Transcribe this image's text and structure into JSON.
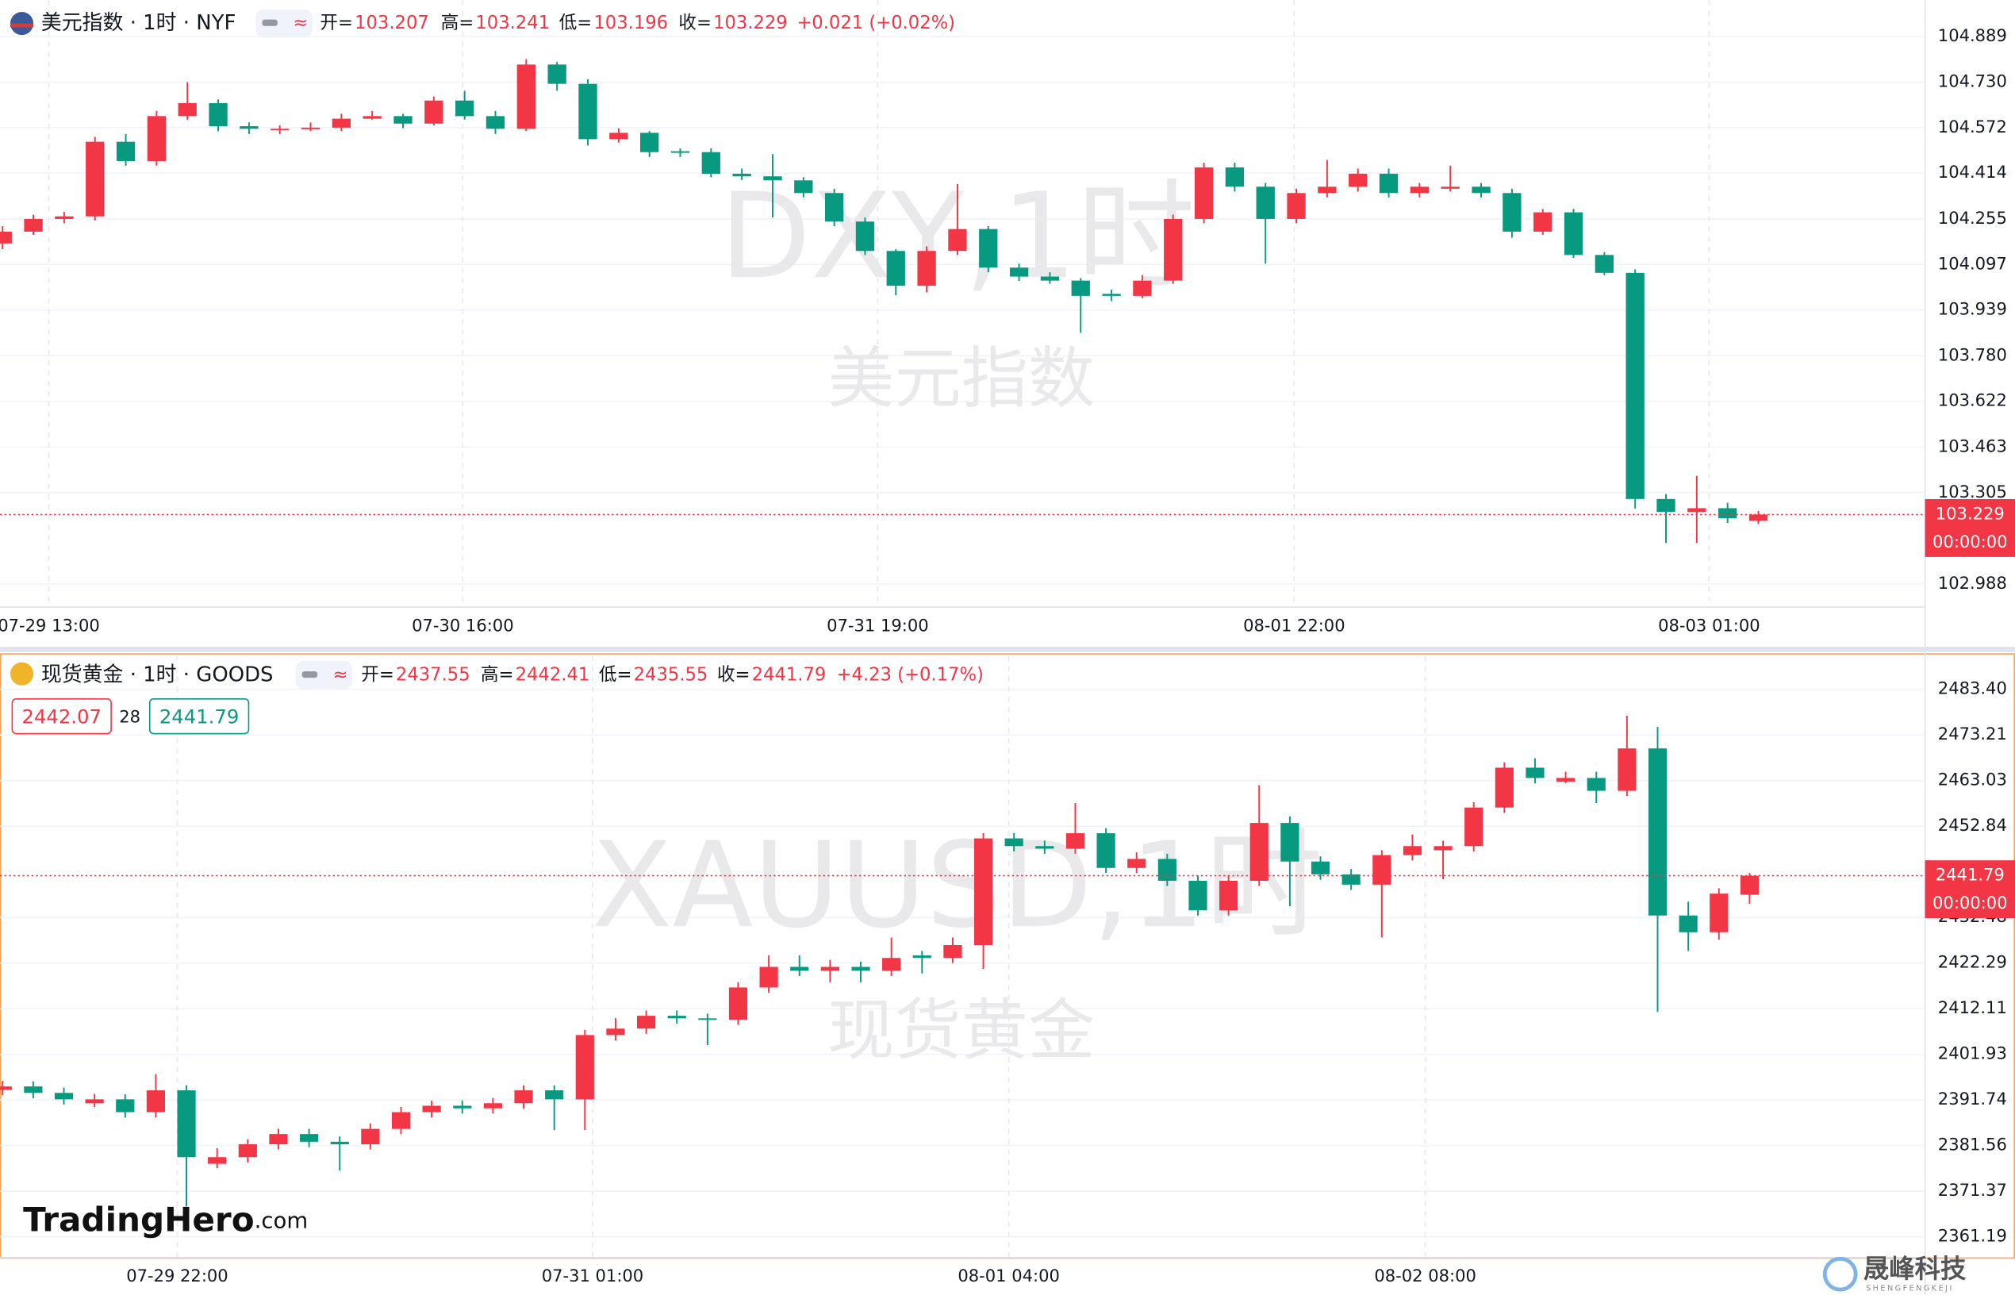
{
  "chart_data": [
    {
      "type": "candlestick",
      "title": "美元指数 · 1时 · NYF",
      "ohlc_labels": [
        "开=",
        "高=",
        "低=",
        "收="
      ],
      "change": "+0.021 (+0.02%)",
      "watermark": [
        "DXY,1时",
        "美元指数"
      ],
      "price_time": "00:00:00",
      "up_color": "#f23645",
      "down_color": "#089981",
      "ylim": [
        102.908,
        105.014
      ],
      "yticks": [
        104.889,
        {
          "value": 104.73,
          "label": "104.730"
        },
        104.572,
        104.414,
        104.255,
        104.097,
        103.939,
        {
          "value": 103.78,
          "label": "103.780"
        },
        103.622,
        103.463,
        103.305,
        102.988
      ],
      "xticks": [
        {
          "value": 1.5,
          "label": "07-29 13:00"
        },
        {
          "value": 14.94,
          "label": "07-30 16:00"
        },
        {
          "value": 28.41,
          "label": "07-31 19:00"
        },
        {
          "value": 41.93,
          "label": "08-01 22:00"
        },
        {
          "value": 55.4,
          "label": "08-03 01:00"
        }
      ],
      "candles": [
        [
          104.17,
          104.23,
          104.15,
          104.211
        ],
        [
          104.211,
          104.27,
          104.2,
          104.255
        ],
        [
          104.255,
          104.28,
          104.24,
          104.264
        ],
        [
          104.264,
          104.54,
          104.25,
          104.523
        ],
        [
          104.523,
          104.55,
          104.44,
          104.456
        ],
        [
          104.456,
          104.63,
          104.44,
          104.612
        ],
        [
          104.612,
          104.73,
          104.6,
          104.657
        ],
        [
          104.657,
          104.67,
          104.56,
          104.577
        ],
        [
          104.577,
          104.59,
          104.55,
          104.568
        ],
        [
          104.565,
          104.58,
          104.55,
          104.568
        ],
        [
          104.568,
          104.59,
          104.56,
          104.572
        ],
        [
          104.572,
          104.62,
          104.56,
          104.603
        ],
        [
          104.603,
          104.63,
          104.6,
          104.612
        ],
        [
          104.612,
          104.62,
          104.57,
          104.586
        ],
        [
          104.586,
          104.68,
          104.58,
          104.666
        ],
        [
          104.666,
          104.7,
          104.6,
          104.612
        ],
        [
          104.612,
          104.63,
          104.55,
          104.568
        ],
        [
          104.568,
          104.81,
          104.56,
          104.791
        ],
        [
          104.791,
          104.8,
          104.7,
          104.724
        ],
        [
          104.724,
          104.74,
          104.51,
          104.532
        ],
        [
          104.532,
          104.57,
          104.52,
          104.554
        ],
        [
          104.554,
          104.56,
          104.47,
          104.487
        ],
        [
          104.49,
          104.5,
          104.47,
          104.487
        ],
        [
          104.487,
          104.5,
          104.4,
          104.412
        ],
        [
          104.412,
          104.43,
          104.39,
          104.403
        ],
        [
          104.403,
          104.48,
          104.26,
          104.389
        ],
        [
          104.389,
          104.4,
          104.33,
          104.345
        ],
        [
          104.345,
          104.36,
          104.23,
          104.246
        ],
        [
          104.246,
          104.26,
          104.13,
          104.144
        ],
        [
          104.144,
          104.15,
          103.99,
          104.023
        ],
        [
          104.023,
          104.16,
          104.0,
          104.144
        ],
        [
          104.144,
          104.376,
          104.13,
          104.22
        ],
        [
          104.22,
          104.23,
          104.07,
          104.086
        ],
        [
          104.086,
          104.1,
          104.04,
          104.055
        ],
        [
          104.055,
          104.07,
          104.03,
          104.041
        ],
        [
          104.041,
          104.05,
          103.86,
          103.988
        ],
        [
          103.995,
          104.01,
          103.97,
          103.988
        ],
        [
          103.988,
          104.06,
          103.98,
          104.041
        ],
        [
          104.041,
          104.27,
          104.03,
          104.255
        ],
        [
          104.255,
          104.45,
          104.24,
          104.434
        ],
        [
          104.434,
          104.45,
          104.35,
          104.367
        ],
        [
          104.367,
          104.38,
          104.1,
          104.255
        ],
        [
          104.255,
          104.36,
          104.24,
          104.345
        ],
        [
          104.345,
          104.46,
          104.33,
          104.367
        ],
        [
          104.367,
          104.43,
          104.35,
          104.412
        ],
        [
          104.412,
          104.43,
          104.33,
          104.345
        ],
        [
          104.345,
          104.38,
          104.33,
          104.367
        ],
        [
          104.36,
          104.44,
          104.35,
          104.367
        ],
        [
          104.367,
          104.38,
          104.33,
          104.345
        ],
        [
          104.345,
          104.36,
          104.19,
          104.211
        ],
        [
          104.211,
          104.29,
          104.2,
          104.278
        ],
        [
          104.278,
          104.29,
          104.12,
          104.13
        ],
        [
          104.13,
          104.14,
          104.06,
          104.068
        ],
        [
          104.068,
          104.08,
          103.25,
          103.283
        ],
        [
          103.283,
          103.3,
          103.13,
          103.238
        ],
        [
          103.238,
          103.363,
          103.13,
          103.251
        ],
        [
          103.251,
          103.27,
          103.2,
          103.216
        ],
        [
          103.207,
          103.241,
          103.196,
          103.229
        ]
      ]
    },
    {
      "type": "candlestick",
      "title": "现货黄金 · 1时 · GOODS",
      "ohlc_labels": [
        "开=",
        "高=",
        "低=",
        "收="
      ],
      "change": "+4.23 (+0.17%)",
      "watermark": [
        "XAUUSD,1时",
        "现货黄金"
      ],
      "price_time": "00:00:00",
      "up_color": "#f23645",
      "down_color": "#089981",
      "bid": 2442.07,
      "spread": 28,
      "ask": 2441.79,
      "ylim": [
        2356.6,
        2490.86
      ],
      "yticks": [
        {
          "value": 2483.4,
          "label": "2483.40"
        },
        2473.21,
        2463.03,
        2452.84,
        2432.48,
        2422.29,
        2412.11,
        2401.93,
        2391.74,
        2381.56,
        2371.37,
        2361.19
      ],
      "xticks": [
        {
          "value": 5.7,
          "label": "07-29 22:00"
        },
        {
          "value": 19.25,
          "label": "07-31 01:00"
        },
        {
          "value": 32.83,
          "label": "08-01 04:00"
        },
        {
          "value": 46.42,
          "label": "08-02 08:00"
        }
      ],
      "candles": [
        [
          2394.0,
          2396.0,
          2392.8,
          2394.76
        ],
        [
          2394.76,
          2395.9,
          2392.1,
          2393.32
        ],
        [
          2393.32,
          2394.5,
          2390.7,
          2391.89
        ],
        [
          2391.0,
          2393.1,
          2390.2,
          2391.89
        ],
        [
          2391.89,
          2393.0,
          2387.8,
          2389.02
        ],
        [
          2389.02,
          2397.5,
          2387.8,
          2393.89
        ],
        [
          2393.89,
          2395.0,
          2368.0,
          2378.98
        ],
        [
          2377.5,
          2381.0,
          2376.5,
          2378.98
        ],
        [
          2378.98,
          2383.0,
          2377.8,
          2381.85
        ],
        [
          2381.85,
          2385.3,
          2380.7,
          2384.14
        ],
        [
          2384.14,
          2385.3,
          2381.2,
          2382.42
        ],
        [
          2382.42,
          2383.6,
          2376.0,
          2381.85
        ],
        [
          2381.85,
          2386.5,
          2380.7,
          2385.29
        ],
        [
          2385.29,
          2390.2,
          2384.1,
          2389.02
        ],
        [
          2389.02,
          2391.6,
          2387.8,
          2390.45
        ],
        [
          2390.45,
          2391.6,
          2388.7,
          2389.88
        ],
        [
          2389.88,
          2392.2,
          2388.7,
          2391.02
        ],
        [
          2391.02,
          2395.0,
          2389.8,
          2393.89
        ],
        [
          2393.89,
          2395.0,
          2385.0,
          2391.89
        ],
        [
          2391.89,
          2407.4,
          2385.0,
          2406.23
        ],
        [
          2406.23,
          2410.0,
          2405.0,
          2407.67
        ],
        [
          2407.67,
          2411.7,
          2406.5,
          2410.53
        ],
        [
          2410.53,
          2411.7,
          2408.8,
          2409.96
        ],
        [
          2409.96,
          2411.0,
          2404.0,
          2409.67
        ],
        [
          2409.67,
          2418.0,
          2408.5,
          2416.85
        ],
        [
          2416.85,
          2424.0,
          2415.7,
          2421.44
        ],
        [
          2421.44,
          2424.0,
          2419.4,
          2420.58
        ],
        [
          2420.58,
          2423.0,
          2418.0,
          2421.44
        ],
        [
          2421.44,
          2422.6,
          2418.0,
          2420.58
        ],
        [
          2420.58,
          2428.0,
          2419.4,
          2423.44
        ],
        [
          2424.0,
          2425.0,
          2420.0,
          2423.44
        ],
        [
          2423.44,
          2428.0,
          2422.3,
          2426.31
        ],
        [
          2426.31,
          2451.3,
          2421.0,
          2450.12
        ],
        [
          2450.12,
          2451.3,
          2447.2,
          2448.4
        ],
        [
          2448.4,
          2449.6,
          2446.7,
          2447.83
        ],
        [
          2447.83,
          2458.0,
          2446.7,
          2451.27
        ],
        [
          2451.27,
          2452.4,
          2442.4,
          2443.53
        ],
        [
          2443.53,
          2447.0,
          2442.4,
          2445.54
        ],
        [
          2445.54,
          2446.7,
          2439.5,
          2440.66
        ],
        [
          2440.66,
          2441.8,
          2432.9,
          2434.06
        ],
        [
          2434.06,
          2441.8,
          2432.9,
          2440.66
        ],
        [
          2440.66,
          2462.0,
          2439.5,
          2453.57
        ],
        [
          2453.57,
          2455.0,
          2435.0,
          2444.96
        ],
        [
          2444.96,
          2446.1,
          2440.9,
          2442.09
        ],
        [
          2442.09,
          2443.3,
          2438.6,
          2439.8
        ],
        [
          2439.8,
          2447.5,
          2428.0,
          2446.39
        ],
        [
          2446.39,
          2451.0,
          2445.2,
          2448.4
        ],
        [
          2447.5,
          2449.6,
          2441.0,
          2448.4
        ],
        [
          2448.4,
          2458.2,
          2447.2,
          2457.01
        ],
        [
          2457.01,
          2467.1,
          2455.8,
          2465.9
        ],
        [
          2465.9,
          2468.0,
          2462.4,
          2463.61
        ],
        [
          2462.8,
          2465.0,
          2462.4,
          2463.61
        ],
        [
          2463.61,
          2465.0,
          2458.0,
          2460.74
        ],
        [
          2460.74,
          2477.5,
          2459.6,
          2470.2
        ],
        [
          2470.2,
          2475.0,
          2411.4,
          2432.91
        ],
        [
          2432.91,
          2436.0,
          2425.0,
          2429.18
        ],
        [
          2429.18,
          2439.0,
          2427.5,
          2437.79
        ],
        [
          2437.55,
          2442.41,
          2435.55,
          2441.79
        ]
      ]
    }
  ],
  "logo": {
    "name": "TradingHero",
    "suffix": ".com"
  },
  "brand": {
    "name": "晟峰科技",
    "sub": "SHENGFENGKEJI"
  }
}
